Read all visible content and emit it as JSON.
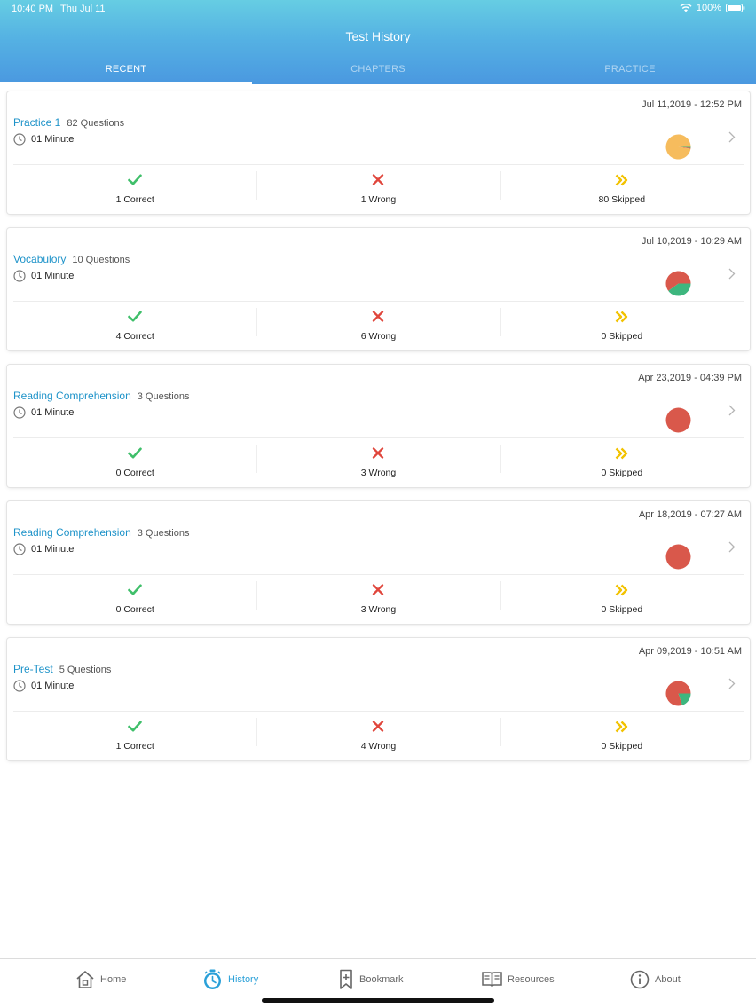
{
  "status_bar": {
    "time": "10:40 PM",
    "date": "Thu Jul 11",
    "battery": "100%"
  },
  "header": {
    "title": "Test History",
    "tabs": [
      {
        "label": "RECENT",
        "active": true
      },
      {
        "label": "CHAPTERS",
        "active": false
      },
      {
        "label": "PRACTICE",
        "active": false
      }
    ]
  },
  "colors": {
    "accent": "#1e93c9",
    "correct": "#3fbf6a",
    "wrong": "#e0463c",
    "skipped": "#f2c200",
    "pie_correct": "#3db67e",
    "pie_wrong": "#d9584b",
    "pie_skipped": "#f6bc5d"
  },
  "history": [
    {
      "date": "Jul 11,2019 - 12:52 PM",
      "title": "Practice 1",
      "questions": "82 Questions",
      "duration": "01 Minute",
      "correct": 1,
      "wrong": 1,
      "skipped": 80,
      "correct_label": "1 Correct",
      "wrong_label": "1 Wrong",
      "skipped_label": "80 Skipped"
    },
    {
      "date": "Jul 10,2019 - 10:29 AM",
      "title": "Vocabulory",
      "questions": "10 Questions",
      "duration": "01 Minute",
      "correct": 4,
      "wrong": 6,
      "skipped": 0,
      "correct_label": "4 Correct",
      "wrong_label": "6 Wrong",
      "skipped_label": "0 Skipped"
    },
    {
      "date": "Apr 23,2019 - 04:39 PM",
      "title": "Reading Comprehension",
      "questions": "3 Questions",
      "duration": "01 Minute",
      "correct": 0,
      "wrong": 3,
      "skipped": 0,
      "correct_label": "0 Correct",
      "wrong_label": "3 Wrong",
      "skipped_label": "0 Skipped"
    },
    {
      "date": "Apr 18,2019 - 07:27 AM",
      "title": "Reading Comprehension",
      "questions": "3 Questions",
      "duration": "01 Minute",
      "correct": 0,
      "wrong": 3,
      "skipped": 0,
      "correct_label": "0 Correct",
      "wrong_label": "3 Wrong",
      "skipped_label": "0 Skipped"
    },
    {
      "date": "Apr 09,2019 - 10:51 AM",
      "title": "Pre-Test",
      "questions": "5 Questions",
      "duration": "01 Minute",
      "correct": 1,
      "wrong": 4,
      "skipped": 0,
      "correct_label": "1 Correct",
      "wrong_label": "4 Wrong",
      "skipped_label": "0 Skipped"
    }
  ],
  "bottom_nav": [
    {
      "label": "Home",
      "icon": "home-icon",
      "active": false
    },
    {
      "label": "History",
      "icon": "history-icon",
      "active": true
    },
    {
      "label": "Bookmark",
      "icon": "bookmark-icon",
      "active": false
    },
    {
      "label": "Resources",
      "icon": "book-icon",
      "active": false
    },
    {
      "label": "About",
      "icon": "info-icon",
      "active": false
    }
  ]
}
